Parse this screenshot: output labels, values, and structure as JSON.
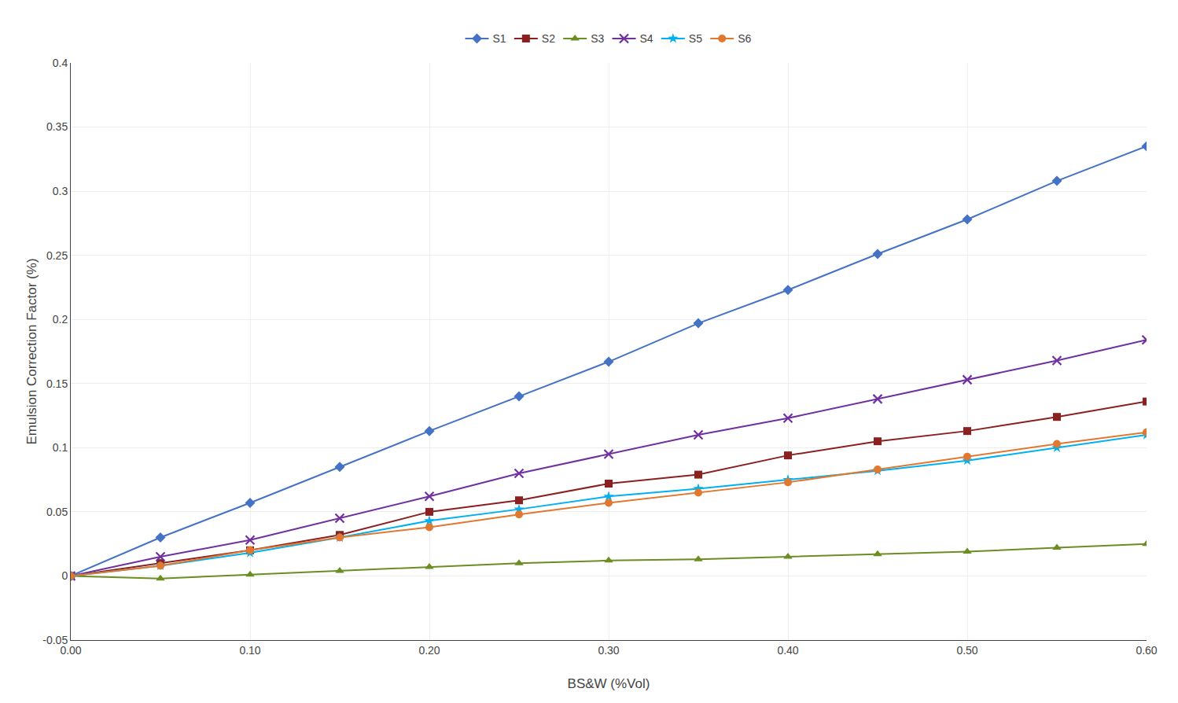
{
  "chart_data": {
    "type": "line",
    "x": [
      0.0,
      0.05,
      0.1,
      0.15,
      0.2,
      0.25,
      0.3,
      0.35,
      0.4,
      0.45,
      0.5,
      0.55,
      0.6
    ],
    "series": [
      {
        "name": "S1",
        "color": "#4472C4",
        "marker": "diamond",
        "values": [
          0.0,
          0.03,
          0.057,
          0.085,
          0.113,
          0.14,
          0.167,
          0.197,
          0.223,
          0.251,
          0.278,
          0.308,
          0.335
        ]
      },
      {
        "name": "S2",
        "color": "#8B2020",
        "marker": "square",
        "values": [
          0.0,
          0.01,
          0.02,
          0.032,
          0.05,
          0.059,
          0.072,
          0.079,
          0.094,
          0.105,
          0.113,
          0.124,
          0.136
        ]
      },
      {
        "name": "S3",
        "color": "#6B8E23",
        "marker": "triangle-up",
        "values": [
          0.0,
          -0.002,
          0.001,
          0.004,
          0.007,
          0.01,
          0.012,
          0.013,
          0.015,
          0.017,
          0.019,
          0.022,
          0.025
        ]
      },
      {
        "name": "S4",
        "color": "#7030A0",
        "marker": "x",
        "values": [
          0.0,
          0.015,
          0.028,
          0.045,
          0.062,
          0.08,
          0.095,
          0.11,
          0.123,
          0.138,
          0.153,
          0.168,
          0.184
        ]
      },
      {
        "name": "S5",
        "color": "#00B0F0",
        "marker": "star",
        "values": [
          0.0,
          0.008,
          0.018,
          0.03,
          0.043,
          0.052,
          0.062,
          0.068,
          0.075,
          0.082,
          0.09,
          0.1,
          0.11
        ]
      },
      {
        "name": "S6",
        "color": "#E07830",
        "marker": "circle",
        "values": [
          0.0,
          0.008,
          0.02,
          0.03,
          0.038,
          0.048,
          0.057,
          0.065,
          0.073,
          0.083,
          0.093,
          0.103,
          0.112
        ]
      }
    ],
    "xlabel": "BS&W (%Vol)",
    "ylabel": "Emulsion Correction Factor (%)",
    "xlim": [
      0.0,
      0.6
    ],
    "ylim": [
      -0.05,
      0.4
    ],
    "xticks": [
      {
        "value": 0.0,
        "label": "0.00"
      },
      {
        "value": 0.1,
        "label": "0.10"
      },
      {
        "value": 0.2,
        "label": "0.20"
      },
      {
        "value": 0.3,
        "label": "0.30"
      },
      {
        "value": 0.4,
        "label": "0.40"
      },
      {
        "value": 0.5,
        "label": "0.50"
      },
      {
        "value": 0.6,
        "label": "0.60"
      }
    ],
    "yticks": [
      -0.05,
      0,
      0.05,
      0.1,
      0.15,
      0.2,
      0.25,
      0.3,
      0.35,
      0.4
    ],
    "grid": true,
    "legend": "top"
  }
}
